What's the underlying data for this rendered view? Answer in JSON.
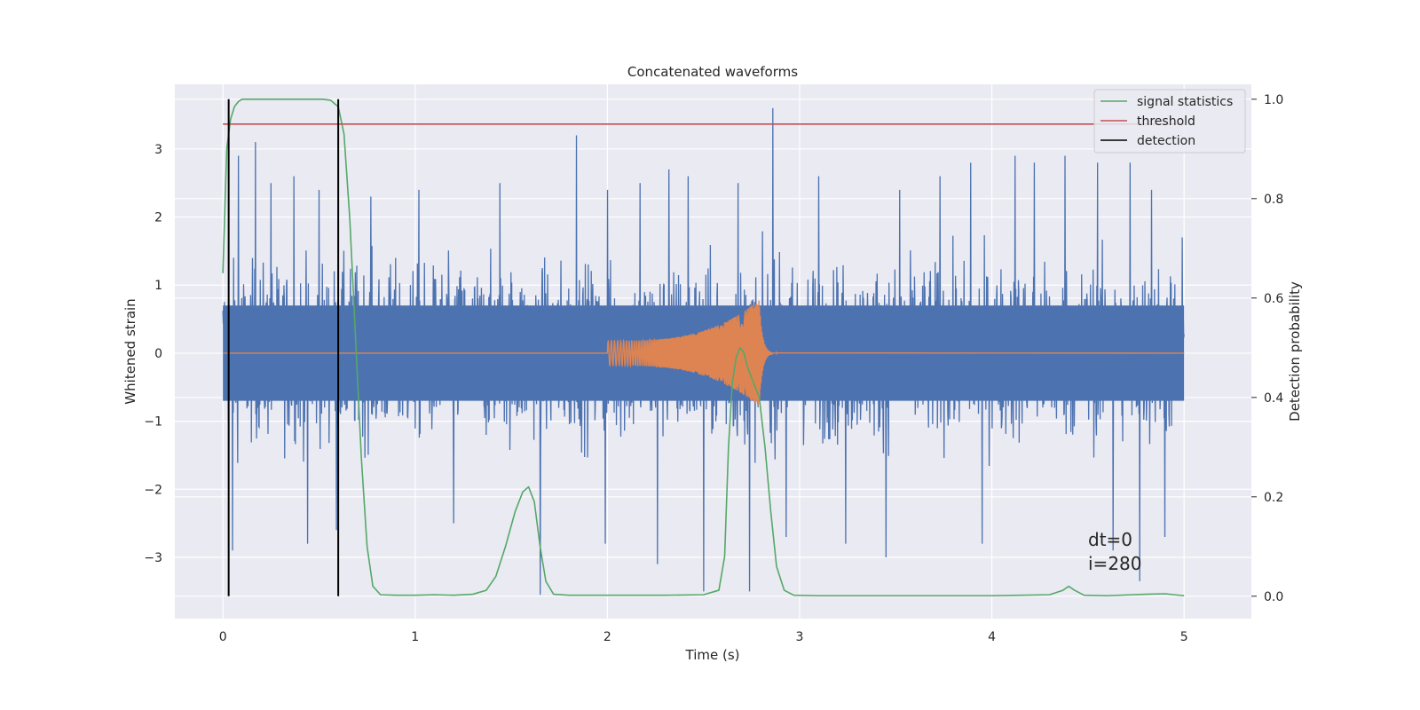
{
  "chart_data": {
    "type": "line",
    "title": "Concatenated waveforms",
    "xlabel": "Time (s)",
    "ylabel": "Whitened strain",
    "ylabel_right": "Detection probability",
    "xlim": [
      -0.25,
      5.35
    ],
    "ylim": [
      -3.9,
      3.95
    ],
    "ylim_right": [
      -0.045,
      1.03
    ],
    "x_ticks": [
      0,
      1,
      2,
      3,
      4,
      5
    ],
    "y_ticks": [
      -3,
      -2,
      -1,
      0,
      1,
      2,
      3
    ],
    "y_ticks_right": [
      0.0,
      0.2,
      0.4,
      0.6,
      0.8,
      1.0
    ],
    "x_tick_labels": [
      "0",
      "1",
      "2",
      "3",
      "4",
      "5"
    ],
    "y_tick_labels": [
      "−3",
      "−2",
      "−1",
      "0",
      "1",
      "2",
      "3"
    ],
    "y_tick_labels_right": [
      "0.0",
      "0.2",
      "0.4",
      "0.6",
      "0.8",
      "1.0"
    ],
    "grid": true,
    "legend_position": "top-right",
    "noise_series": {
      "axis": "left",
      "color": "#4c72b0",
      "x_range": [
        0,
        5
      ],
      "typical_band": [
        -0.7,
        0.7
      ],
      "max_abs": 3.6,
      "spikes": [
        {
          "x": 0.08,
          "y": 2.9
        },
        {
          "x": 0.17,
          "y": 3.1
        },
        {
          "x": 0.25,
          "y": 2.5
        },
        {
          "x": 0.37,
          "y": 2.6
        },
        {
          "x": 0.5,
          "y": 2.4
        },
        {
          "x": 0.05,
          "y": -2.9
        },
        {
          "x": 0.44,
          "y": -2.8
        },
        {
          "x": 0.59,
          "y": -2.6
        },
        {
          "x": 0.77,
          "y": 2.3
        },
        {
          "x": 1.02,
          "y": 2.4
        },
        {
          "x": 1.2,
          "y": -2.5
        },
        {
          "x": 1.44,
          "y": 2.5
        },
        {
          "x": 1.65,
          "y": -3.55
        },
        {
          "x": 1.84,
          "y": 3.2
        },
        {
          "x": 1.99,
          "y": -2.8
        },
        {
          "x": 2.0,
          "y": 2.4
        },
        {
          "x": 2.17,
          "y": 2.5
        },
        {
          "x": 2.26,
          "y": -3.1
        },
        {
          "x": 2.32,
          "y": 2.7
        },
        {
          "x": 2.42,
          "y": 2.6
        },
        {
          "x": 2.5,
          "y": -3.5
        },
        {
          "x": 2.68,
          "y": 2.5
        },
        {
          "x": 2.74,
          "y": -3.5
        },
        {
          "x": 2.86,
          "y": 3.6
        },
        {
          "x": 2.93,
          "y": -2.7
        },
        {
          "x": 3.1,
          "y": 2.6
        },
        {
          "x": 3.24,
          "y": -2.8
        },
        {
          "x": 3.45,
          "y": -3.0
        },
        {
          "x": 3.52,
          "y": 2.4
        },
        {
          "x": 3.73,
          "y": 2.6
        },
        {
          "x": 3.89,
          "y": 2.8
        },
        {
          "x": 3.95,
          "y": -2.8
        },
        {
          "x": 4.12,
          "y": 2.9
        },
        {
          "x": 4.22,
          "y": 2.8
        },
        {
          "x": 4.38,
          "y": 2.9
        },
        {
          "x": 4.55,
          "y": 2.8
        },
        {
          "x": 4.63,
          "y": -2.9
        },
        {
          "x": 4.72,
          "y": 2.8
        },
        {
          "x": 4.77,
          "y": -3.35
        },
        {
          "x": 4.83,
          "y": 2.4
        },
        {
          "x": 4.9,
          "y": -2.7
        },
        {
          "x": 4.99,
          "y": 1.7
        }
      ]
    },
    "signal_series": {
      "axis": "left",
      "color": "#dd8452",
      "x_range": [
        2.0,
        2.8
      ],
      "amplitude_start": 0.18,
      "amplitude_peak": 0.78,
      "peak_x": 2.79,
      "ringdown_end": 2.88
    },
    "series": [
      {
        "name": "signal statistics",
        "axis": "right",
        "color": "#55a868",
        "x": [
          0,
          0.02,
          0.04,
          0.06,
          0.08,
          0.1,
          0.13,
          0.2,
          0.4,
          0.52,
          0.56,
          0.6,
          0.63,
          0.66,
          0.69,
          0.72,
          0.75,
          0.78,
          0.82,
          0.9,
          1.0,
          1.1,
          1.2,
          1.3,
          1.37,
          1.42,
          1.47,
          1.52,
          1.56,
          1.59,
          1.62,
          1.65,
          1.68,
          1.72,
          1.8,
          2.0,
          2.3,
          2.5,
          2.58,
          2.61,
          2.63,
          2.65,
          2.67,
          2.69,
          2.71,
          2.73,
          2.76,
          2.79,
          2.82,
          2.85,
          2.88,
          2.92,
          2.97,
          3.1,
          3.5,
          4.0,
          4.3,
          4.37,
          4.4,
          4.43,
          4.48,
          4.6,
          4.8,
          4.9,
          5.0
        ],
        "y": [
          0.65,
          0.9,
          0.96,
          0.985,
          0.995,
          1.0,
          1.0,
          1.0,
          1.0,
          1.0,
          0.998,
          0.985,
          0.93,
          0.76,
          0.52,
          0.28,
          0.1,
          0.02,
          0.003,
          0.002,
          0.002,
          0.003,
          0.002,
          0.004,
          0.012,
          0.04,
          0.1,
          0.17,
          0.21,
          0.22,
          0.19,
          0.1,
          0.03,
          0.004,
          0.002,
          0.002,
          0.002,
          0.003,
          0.012,
          0.08,
          0.3,
          0.43,
          0.48,
          0.5,
          0.49,
          0.46,
          0.43,
          0.4,
          0.3,
          0.17,
          0.06,
          0.012,
          0.002,
          0.001,
          0.001,
          0.001,
          0.003,
          0.012,
          0.02,
          0.012,
          0.002,
          0.001,
          0.004,
          0.005,
          0.001
        ]
      },
      {
        "name": "threshold",
        "axis": "right",
        "color": "#c44e52",
        "x": [
          0,
          5
        ],
        "y": [
          0.95,
          0.95
        ]
      },
      {
        "name": "detection",
        "axis": "right",
        "color": "#000000",
        "segments": [
          {
            "x": 0.03,
            "y": [
              0.0,
              1.0
            ]
          },
          {
            "x": 0.6,
            "y": [
              0.0,
              1.0
            ]
          }
        ]
      }
    ],
    "annotations": [
      {
        "text": "dt=0",
        "x": 4.5,
        "y": -2.83
      },
      {
        "text": "i=280",
        "x": 4.5,
        "y": -3.15
      }
    ]
  }
}
